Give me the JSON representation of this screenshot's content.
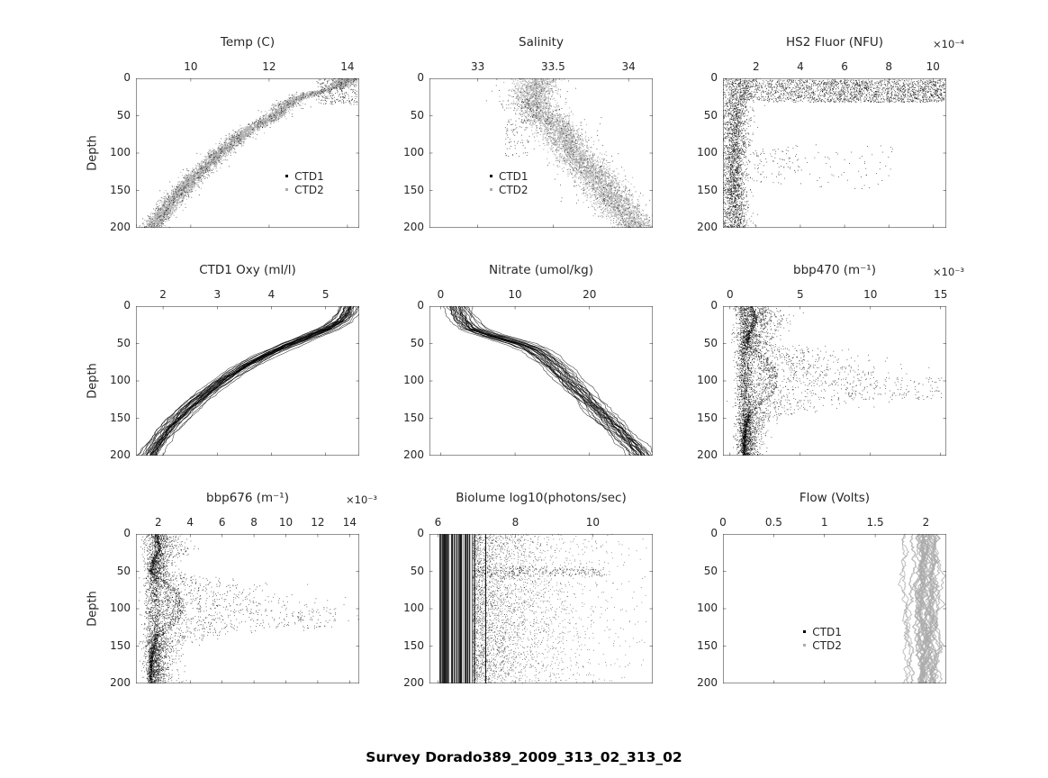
{
  "figure": {
    "bg": "#ffffff"
  },
  "footer": {
    "title": "Survey Dorado389_2009_313_02_313_02"
  },
  "colors": {
    "axis": "#262626",
    "ctd1": "#000000",
    "ctd2": "#ababab"
  },
  "depth_axis": {
    "label": "Depth",
    "ticks": [
      0,
      50,
      100,
      150,
      200
    ],
    "range": [
      0,
      200
    ]
  },
  "chart_data": [
    {
      "id": "temp",
      "type": "scatter",
      "title": "Temp (C)",
      "exponent": null,
      "x_ticks": [
        10,
        12,
        14
      ],
      "x_tick_labels": [
        "10",
        "12",
        "14"
      ],
      "x_range": [
        8.6,
        14.3
      ],
      "y_ticks": [
        0,
        50,
        100,
        150,
        200
      ],
      "y_tick_labels": [
        "0",
        "50",
        "100",
        "150",
        "200"
      ],
      "y_range": [
        0,
        200
      ],
      "ylabel": "Depth",
      "legend": [
        {
          "label": "CTD1",
          "color": "#000000"
        },
        {
          "label": "CTD2",
          "color": "#ababab"
        }
      ],
      "legend_pos": {
        "x": 0.67,
        "y": 0.61
      },
      "render": {
        "kind": "band",
        "seed": 11,
        "spread": 0.13,
        "n_gray": 4200,
        "n_black": 650,
        "control": [
          [
            0,
            13.95
          ],
          [
            8,
            13.85
          ],
          [
            15,
            13.5
          ],
          [
            22,
            13.0
          ],
          [
            30,
            12.6
          ],
          [
            40,
            12.35
          ],
          [
            50,
            12.15
          ],
          [
            60,
            11.8
          ],
          [
            70,
            11.45
          ],
          [
            80,
            11.2
          ],
          [
            90,
            11.0
          ],
          [
            100,
            10.7
          ],
          [
            110,
            10.55
          ],
          [
            120,
            10.35
          ],
          [
            130,
            10.15
          ],
          [
            140,
            9.95
          ],
          [
            150,
            9.75
          ],
          [
            160,
            9.6
          ],
          [
            170,
            9.45
          ],
          [
            180,
            9.3
          ],
          [
            190,
            9.15
          ],
          [
            200,
            9.0
          ]
        ],
        "clusters": [
          {
            "d": [
              0,
              35
            ],
            "x": [
              13.2,
              14.25
            ],
            "n": 260,
            "color": "#000000"
          },
          {
            "d": [
              0,
              12
            ],
            "x": [
              13.6,
              14.25
            ],
            "n": 220,
            "color": "#ababab"
          }
        ]
      }
    },
    {
      "id": "salinity",
      "type": "scatter",
      "title": "Salinity",
      "exponent": null,
      "x_ticks": [
        33,
        33.5,
        34
      ],
      "x_tick_labels": [
        "33",
        "33.5",
        "34"
      ],
      "x_range": [
        32.68,
        34.16
      ],
      "y_ticks": [
        0,
        50,
        100,
        150,
        200
      ],
      "y_tick_labels": [
        "0",
        "50",
        "100",
        "150",
        "200"
      ],
      "y_range": [
        0,
        200
      ],
      "ylabel": null,
      "legend": [
        {
          "label": "CTD1",
          "color": "#000000"
        },
        {
          "label": "CTD2",
          "color": "#ababab"
        }
      ],
      "legend_pos": {
        "x": 0.27,
        "y": 0.61
      },
      "render": {
        "kind": "band",
        "seed": 22,
        "spread": 0.07,
        "n_gray": 4200,
        "n_black": 600,
        "control": [
          [
            0,
            33.4
          ],
          [
            15,
            33.37
          ],
          [
            30,
            33.36
          ],
          [
            40,
            33.38
          ],
          [
            50,
            33.44
          ],
          [
            60,
            33.5
          ],
          [
            70,
            33.54
          ],
          [
            80,
            33.57
          ],
          [
            90,
            33.6
          ],
          [
            100,
            33.64
          ],
          [
            110,
            33.68
          ],
          [
            120,
            33.72
          ],
          [
            130,
            33.77
          ],
          [
            140,
            33.81
          ],
          [
            150,
            33.85
          ],
          [
            160,
            33.89
          ],
          [
            170,
            33.93
          ],
          [
            180,
            33.97
          ],
          [
            190,
            34.02
          ],
          [
            200,
            34.06
          ]
        ],
        "clusters": [
          {
            "d": [
              55,
              105
            ],
            "x": [
              33.18,
              33.34
            ],
            "n": 70,
            "color": "#000000"
          },
          {
            "d": [
              30,
              60
            ],
            "x": [
              33.28,
              33.4
            ],
            "n": 60,
            "color": "#000000"
          }
        ]
      }
    },
    {
      "id": "hs2-fluor",
      "type": "scatter",
      "title": "HS2 Fluor (NFU)",
      "exponent": "×10⁻⁴",
      "x_ticks": [
        2,
        4,
        6,
        8,
        10
      ],
      "x_tick_labels": [
        "2",
        "4",
        "6",
        "8",
        "10"
      ],
      "x_range": [
        0.5,
        10.6
      ],
      "y_ticks": [
        0,
        50,
        100,
        150,
        200
      ],
      "y_tick_labels": [
        "0",
        "50",
        "100",
        "150",
        "200"
      ],
      "y_range": [
        0,
        200
      ],
      "ylabel": null,
      "legend": null,
      "legend_pos": null,
      "render": {
        "kind": "scatter",
        "seed": 33,
        "n_points": 2600,
        "left_factor": 1.0,
        "control": [
          [
            0,
            1.2,
            0.5
          ],
          [
            30,
            1.1,
            0.35
          ],
          [
            60,
            1.05,
            0.3
          ],
          [
            100,
            1.0,
            0.3
          ],
          [
            150,
            1.0,
            0.28
          ],
          [
            200,
            1.05,
            0.3
          ]
        ],
        "surface": {
          "d": [
            2,
            32
          ],
          "x": [
            1.2,
            10.55
          ],
          "n": 2300
        },
        "clusters": [
          {
            "d": [
              88,
              148
            ],
            "x": [
              1.6,
              8.2
            ],
            "n": 90,
            "color": "#000000"
          },
          {
            "d": [
              95,
              130
            ],
            "x": [
              2.0,
              4.0
            ],
            "n": 60,
            "color": "#000000"
          }
        ]
      }
    },
    {
      "id": "ctd1-oxy",
      "type": "line",
      "title": "CTD1 Oxy (ml/l)",
      "exponent": null,
      "x_ticks": [
        2,
        3,
        4,
        5
      ],
      "x_tick_labels": [
        "2",
        "3",
        "4",
        "5"
      ],
      "x_range": [
        1.5,
        5.62
      ],
      "y_ticks": [
        0,
        50,
        100,
        150,
        200
      ],
      "y_tick_labels": [
        "0",
        "50",
        "100",
        "150",
        "200"
      ],
      "y_range": [
        0,
        200
      ],
      "ylabel": "Depth",
      "legend": null,
      "legend_pos": null,
      "render": {
        "kind": "lines",
        "seed": 44,
        "n_lines": 30,
        "line_jitter": 0.09,
        "wobble": 0.045,
        "control": [
          [
            0,
            5.45
          ],
          [
            10,
            5.4
          ],
          [
            20,
            5.28
          ],
          [
            30,
            5.05
          ],
          [
            40,
            4.72
          ],
          [
            50,
            4.38
          ],
          [
            60,
            4.05
          ],
          [
            70,
            3.78
          ],
          [
            80,
            3.52
          ],
          [
            90,
            3.3
          ],
          [
            100,
            3.1
          ],
          [
            110,
            2.92
          ],
          [
            120,
            2.75
          ],
          [
            130,
            2.58
          ],
          [
            140,
            2.42
          ],
          [
            150,
            2.28
          ],
          [
            160,
            2.15
          ],
          [
            170,
            2.04
          ],
          [
            180,
            1.94
          ],
          [
            190,
            1.84
          ],
          [
            200,
            1.76
          ]
        ]
      }
    },
    {
      "id": "nitrate",
      "type": "line",
      "title": "Nitrate (umol/kg)",
      "exponent": null,
      "x_ticks": [
        0,
        10,
        20
      ],
      "x_tick_labels": [
        "0",
        "10",
        "20"
      ],
      "x_range": [
        -1.5,
        28.5
      ],
      "y_ticks": [
        0,
        50,
        100,
        150,
        200
      ],
      "y_tick_labels": [
        "0",
        "50",
        "100",
        "150",
        "200"
      ],
      "y_range": [
        0,
        200
      ],
      "ylabel": null,
      "legend": null,
      "legend_pos": null,
      "render": {
        "kind": "lines",
        "seed": 55,
        "n_lines": 26,
        "line_jitter": 0.9,
        "wobble": 0.45,
        "control": [
          [
            0,
            2.2
          ],
          [
            10,
            2.6
          ],
          [
            20,
            3.2
          ],
          [
            30,
            4.2
          ],
          [
            35,
            5.5
          ],
          [
            40,
            7.0
          ],
          [
            45,
            8.8
          ],
          [
            50,
            10.5
          ],
          [
            55,
            11.8
          ],
          [
            60,
            12.8
          ],
          [
            70,
            14.2
          ],
          [
            80,
            15.3
          ],
          [
            90,
            16.3
          ],
          [
            100,
            17.2
          ],
          [
            110,
            18.2
          ],
          [
            120,
            19.2
          ],
          [
            130,
            20.2
          ],
          [
            140,
            21.2
          ],
          [
            150,
            22.2
          ],
          [
            160,
            23.2
          ],
          [
            170,
            24.2
          ],
          [
            180,
            25.2
          ],
          [
            190,
            26.2
          ],
          [
            200,
            27.0
          ]
        ]
      }
    },
    {
      "id": "bbp470",
      "type": "scatter",
      "title": "bbp470 (m⁻¹)",
      "exponent": "×10⁻³",
      "x_ticks": [
        0,
        5,
        10,
        15
      ],
      "x_tick_labels": [
        "0",
        "5",
        "10",
        "15"
      ],
      "x_range": [
        -0.5,
        15.4
      ],
      "y_ticks": [
        0,
        50,
        100,
        150,
        200
      ],
      "y_tick_labels": [
        "0",
        "50",
        "100",
        "150",
        "200"
      ],
      "y_range": [
        0,
        200
      ],
      "ylabel": null,
      "legend": null,
      "legend_pos": null,
      "render": {
        "kind": "scatter",
        "seed": 66,
        "n_points": 3000,
        "left_factor": 0.2,
        "control": [
          [
            0,
            1.6,
            0.9
          ],
          [
            20,
            2.0,
            1.2
          ],
          [
            35,
            1.5,
            0.9
          ],
          [
            50,
            1.3,
            0.9
          ],
          [
            60,
            2.0,
            2.5
          ],
          [
            70,
            2.8,
            3.5
          ],
          [
            80,
            3.2,
            4.2
          ],
          [
            90,
            3.4,
            4.6
          ],
          [
            100,
            3.4,
            5.0
          ],
          [
            110,
            3.3,
            5.2
          ],
          [
            120,
            3.0,
            4.6
          ],
          [
            130,
            2.4,
            3.4
          ],
          [
            140,
            1.7,
            1.8
          ],
          [
            150,
            1.4,
            1.0
          ],
          [
            160,
            1.2,
            0.7
          ],
          [
            180,
            1.1,
            0.6
          ],
          [
            200,
            1.1,
            0.6
          ]
        ],
        "band": {
          "center": 1.05,
          "spread": 0.3,
          "n": 1900
        },
        "clusters": [
          {
            "d": [
              95,
              125
            ],
            "x": [
              8,
              15.2
            ],
            "n": 110,
            "color": "#000000"
          }
        ]
      }
    },
    {
      "id": "bbp676",
      "type": "scatter",
      "title": "bbp676 (m⁻¹)",
      "exponent": "×10⁻³",
      "x_ticks": [
        2,
        4,
        6,
        8,
        10,
        12,
        14
      ],
      "x_tick_labels": [
        "2",
        "4",
        "6",
        "8",
        "10",
        "12",
        "14"
      ],
      "x_range": [
        0.6,
        14.6
      ],
      "y_ticks": [
        0,
        50,
        100,
        150,
        200
      ],
      "y_tick_labels": [
        "0",
        "50",
        "100",
        "150",
        "200"
      ],
      "y_range": [
        0,
        200
      ],
      "ylabel": "Depth",
      "legend": null,
      "legend_pos": null,
      "render": {
        "kind": "scatter",
        "seed": 77,
        "n_points": 2900,
        "left_factor": 0.2,
        "control": [
          [
            0,
            1.9,
            0.6
          ],
          [
            20,
            2.2,
            0.9
          ],
          [
            35,
            1.8,
            0.6
          ],
          [
            50,
            1.6,
            0.6
          ],
          [
            60,
            2.2,
            1.8
          ],
          [
            70,
            3.0,
            2.8
          ],
          [
            80,
            3.4,
            3.4
          ],
          [
            90,
            3.6,
            3.8
          ],
          [
            100,
            3.6,
            4.2
          ],
          [
            110,
            3.5,
            4.4
          ],
          [
            120,
            3.2,
            3.8
          ],
          [
            130,
            2.6,
            2.8
          ],
          [
            140,
            2.0,
            1.4
          ],
          [
            150,
            1.8,
            0.9
          ],
          [
            160,
            1.7,
            0.7
          ],
          [
            180,
            1.6,
            0.6
          ],
          [
            200,
            1.6,
            0.7
          ]
        ],
        "band": {
          "center": 1.75,
          "spread": 0.32,
          "n": 1600
        },
        "clusters": [
          {
            "d": [
              100,
              126
            ],
            "x": [
              8,
              13.2
            ],
            "n": 80,
            "color": "#000000"
          }
        ]
      }
    },
    {
      "id": "biolume",
      "type": "scatter",
      "title": "Biolume log10(photons/sec)",
      "exponent": null,
      "x_ticks": [
        6,
        8,
        10
      ],
      "x_tick_labels": [
        "6",
        "8",
        "10"
      ],
      "x_range": [
        5.78,
        11.55
      ],
      "y_ticks": [
        0,
        50,
        100,
        150,
        200
      ],
      "y_tick_labels": [
        "0",
        "50",
        "100",
        "150",
        "200"
      ],
      "y_range": [
        0,
        200
      ],
      "ylabel": null,
      "legend": null,
      "legend_pos": null,
      "render": {
        "kind": "biolume",
        "seed": 88,
        "stripes": {
          "x0": 6.02,
          "spread": 0.6,
          "max": 7.75,
          "n": 60
        },
        "scatter": {
          "x0": 6.9,
          "scale": 1.05,
          "max": 11.4,
          "n": 3300
        },
        "clusters": [
          {
            "d": [
              44,
              57
            ],
            "x": [
              6.9,
              10.3
            ],
            "n": 260,
            "color": "#000000"
          }
        ]
      }
    },
    {
      "id": "flow",
      "type": "line",
      "title": "Flow (Volts)",
      "exponent": null,
      "x_ticks": [
        0,
        0.5,
        1,
        1.5,
        2
      ],
      "x_tick_labels": [
        "0",
        "0.5",
        "1",
        "1.5",
        "2"
      ],
      "x_range": [
        0,
        2.2
      ],
      "y_ticks": [
        0,
        50,
        100,
        150,
        200
      ],
      "y_tick_labels": [
        "0",
        "50",
        "100",
        "150",
        "200"
      ],
      "y_range": [
        0,
        200
      ],
      "ylabel": null,
      "legend": [
        {
          "label": "CTD1",
          "color": "#000000"
        },
        {
          "label": "CTD2",
          "color": "#ababab"
        }
      ],
      "legend_pos": {
        "x": 0.36,
        "y": 0.61
      },
      "render": {
        "kind": "flow",
        "seed": 99,
        "n_lines": 26,
        "center": 2.02,
        "base_spread": 0.055,
        "wobble": 0.05,
        "extra": {
          "center": 1.8,
          "n": 3,
          "base_spread": 0.03
        }
      }
    }
  ]
}
